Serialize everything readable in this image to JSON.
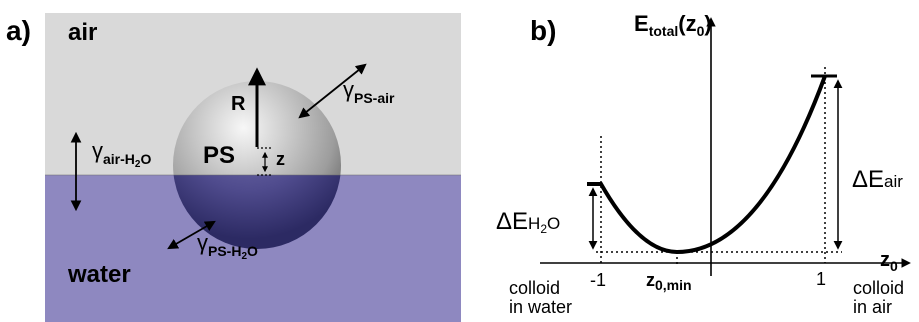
{
  "panel_a": {
    "label": "a)",
    "air_label": "air",
    "water_label": "water",
    "sphere_label": "PS",
    "radius_label": "R",
    "offset_label": "z",
    "gamma_air_h2o": {
      "symbol": "γ",
      "subscript": "air-H",
      "subscript_sub": "2",
      "subscript_tail": "O"
    },
    "gamma_ps_air": {
      "symbol": "γ",
      "subscript": "PS-air"
    },
    "gamma_ps_h2o": {
      "symbol": "γ",
      "subscript": "PS-H",
      "subscript_sub": "2",
      "subscript_tail": "O"
    }
  },
  "panel_b": {
    "label": "b)",
    "y_axis_label": {
      "main": "E",
      "subscript": "total",
      "open": "(z",
      "arg_subscript": "0",
      "close": ")"
    },
    "x_axis_label": {
      "main": "z",
      "subscript": "0"
    },
    "delta_e_air": {
      "prefix": "ΔE",
      "subscript": "air"
    },
    "delta_e_h2o": {
      "prefix": "ΔE",
      "subscript": "H",
      "subscript_sub": "2",
      "subscript_tail": "O"
    },
    "ticks": {
      "left": "-1",
      "right": "1",
      "min_main": "z",
      "min_subscript": "0,min"
    },
    "endpoint_labels": {
      "left_line1": "colloid",
      "left_line2": "in water",
      "right_line1": "colloid",
      "right_line2": "in air"
    }
  },
  "colors": {
    "air": "#d9d9d9",
    "water": "#8e88c0",
    "line": "#000000"
  }
}
